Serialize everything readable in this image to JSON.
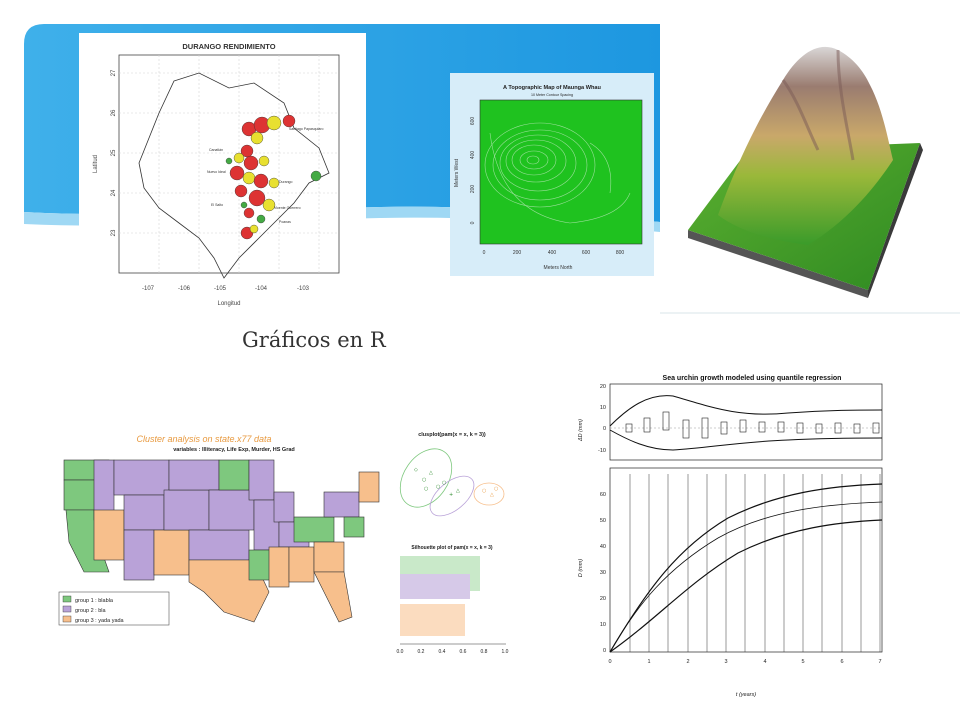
{
  "slide": {
    "caption": "Gráficos en R",
    "banner_color": "#2aa3e6"
  },
  "durango": {
    "title": "DURANGO RENDIMIENTO",
    "xlabel": "Longitud",
    "ylabel": "Latitud",
    "xticks": [
      "-107",
      "-106",
      "-105",
      "-104",
      "-103"
    ],
    "yticks": [
      "27",
      "26",
      "25",
      "24",
      "23"
    ],
    "place_labels": [
      "Santiago Papasquiaro",
      "Canatlán",
      "Durango",
      "Nuevo Ideal",
      "Vicente Guerrero",
      "El Salto",
      "Poanas"
    ]
  },
  "topo": {
    "title": "A Topographic Map of Maunga Whau",
    "subtitle": "10 Meter Contour Spacing",
    "xlabel": "Meters North",
    "ylabel": "Meters West",
    "xticks": [
      "0",
      "200",
      "400",
      "600",
      "800"
    ],
    "yticks": [
      "600",
      "400",
      "200",
      "0"
    ],
    "fill_color": "#1fc21f"
  },
  "cluster": {
    "title": "Cluster analysis on state.x77 data",
    "subtitle": "variables : Illiteracy, Life Exp, Murder, HS Grad",
    "legend": [
      "group 1 :  blabla",
      "group 2 :  bla",
      "group 3 :  yada yada"
    ],
    "colors": [
      "#7ec87e",
      "#b9a2d8",
      "#f7bf8c"
    ],
    "clusplot_title": "clusplot(pam(x = x, k = 3))",
    "silhouette_title": "Silhouette plot of pam(x = x, k = 3)",
    "silhouette_ticks": [
      "0.0",
      "0.2",
      "0.4",
      "0.6",
      "0.8",
      "1.0"
    ]
  },
  "urchin": {
    "title": "Sea urchin growth modeled using quantile regression",
    "top_ylabel": "ΔD (mm)",
    "bottom_ylabel": "D (mm)",
    "xlabel": "t (years)",
    "top_yticks": [
      "20",
      "10",
      "0",
      "-10"
    ],
    "bottom_yticks": [
      "60",
      "50",
      "40",
      "30",
      "20",
      "10",
      "0"
    ],
    "xticks": [
      "0",
      "1",
      "2",
      "3",
      "4",
      "5",
      "6",
      "7"
    ]
  }
}
